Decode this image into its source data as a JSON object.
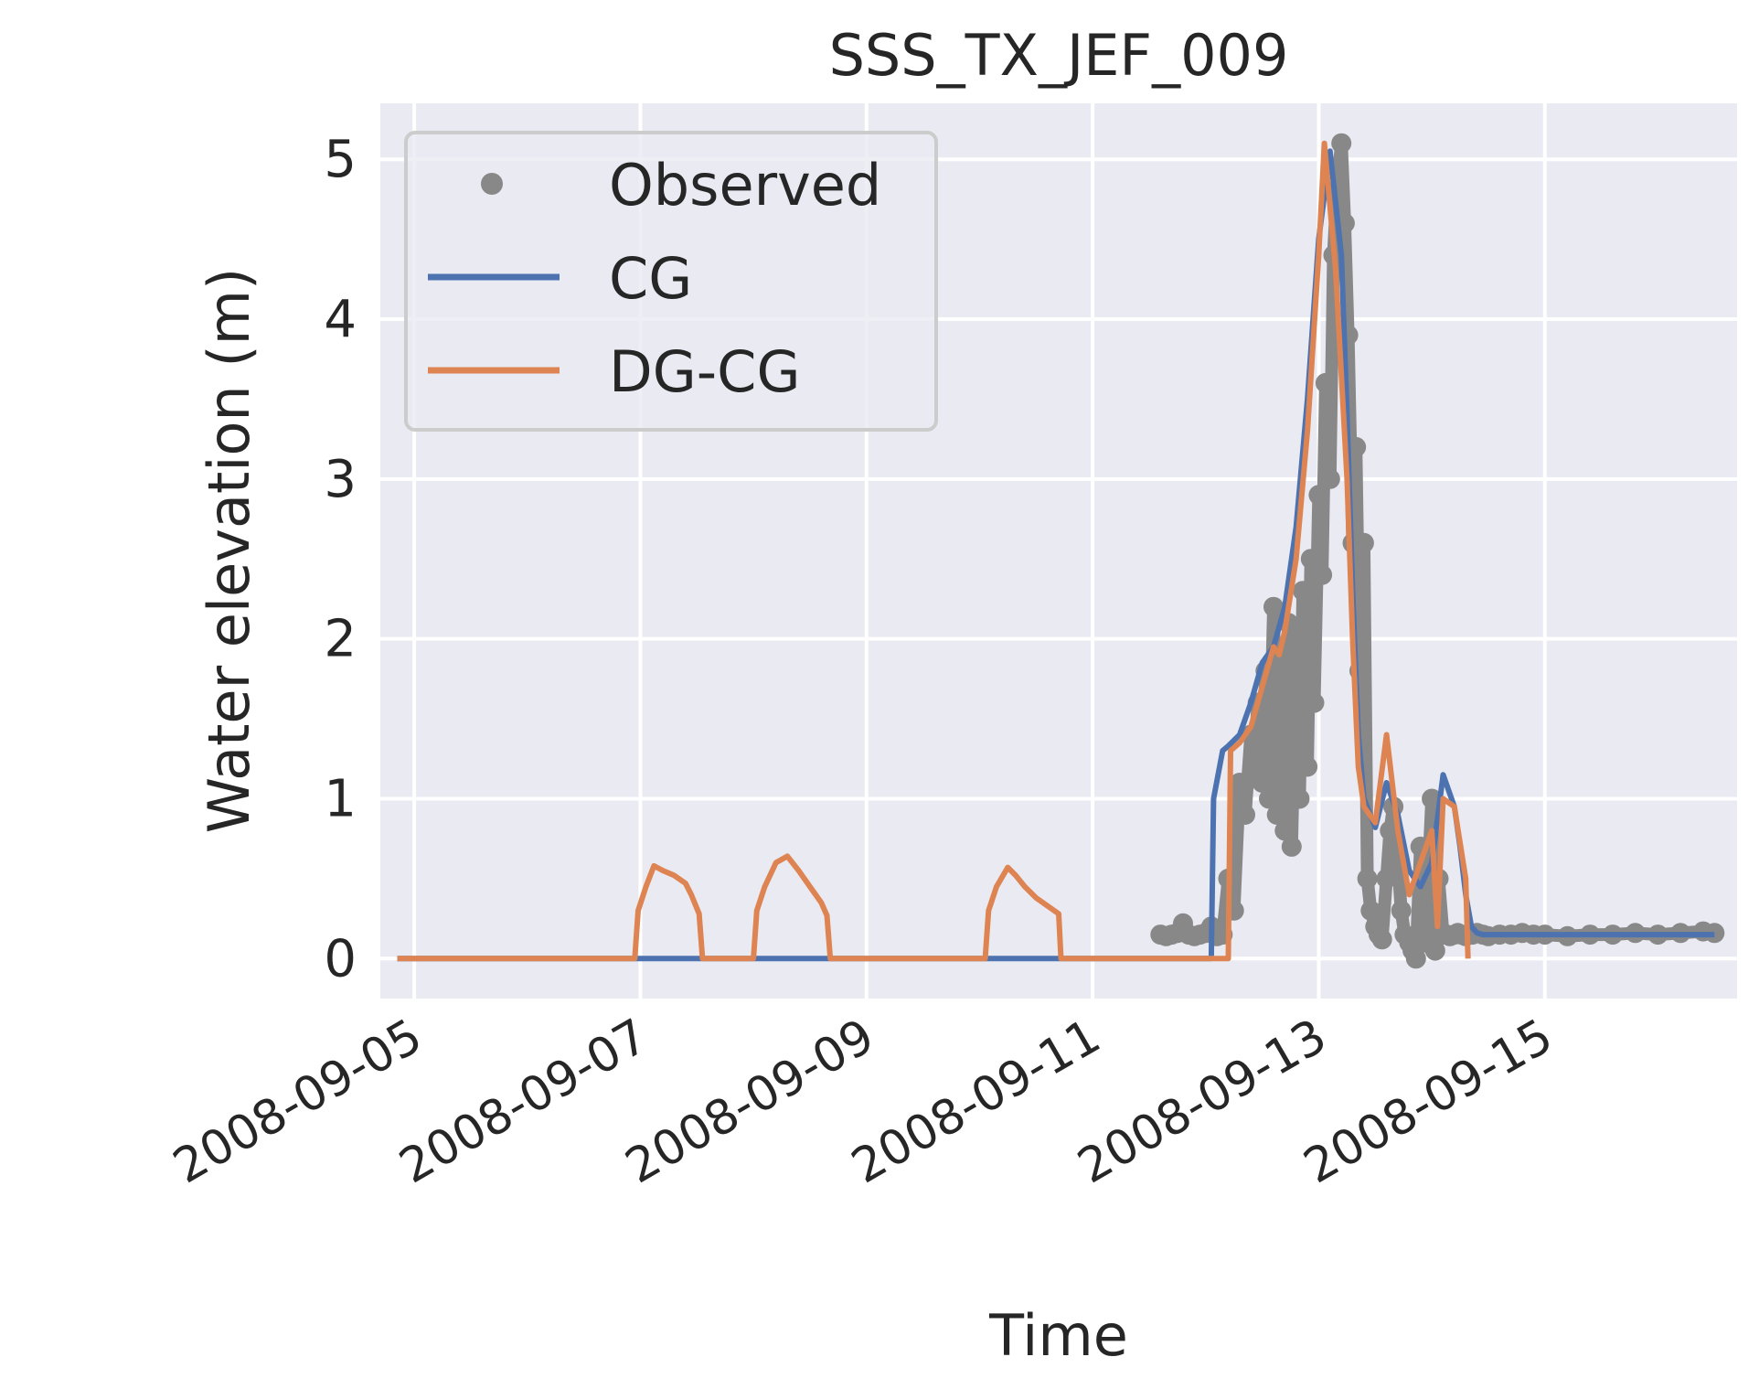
{
  "chart_data": {
    "type": "line",
    "title": "SSS_TX_JEF_009",
    "xlabel": "Time",
    "ylabel": "Water elevation (m)",
    "x_type": "time_days",
    "x_origin": "2008-09-05",
    "xlim_days": [
      -0.3,
      11.7
    ],
    "ylim": [
      -0.25,
      5.35
    ],
    "xticks": [
      {
        "day": 0,
        "label": "2008-09-05"
      },
      {
        "day": 2,
        "label": "2008-09-07"
      },
      {
        "day": 4,
        "label": "2008-09-09"
      },
      {
        "day": 6,
        "label": "2008-09-11"
      },
      {
        "day": 8,
        "label": "2008-09-13"
      },
      {
        "day": 10,
        "label": "2008-09-15"
      }
    ],
    "yticks": [
      0,
      1,
      2,
      3,
      4,
      5
    ],
    "grid": true,
    "legend_position": "top-left",
    "series": [
      {
        "name": "Observed",
        "kind": "points",
        "color": "#888888",
        "x": [
          6.6,
          6.65,
          6.7,
          6.75,
          6.8,
          6.85,
          6.9,
          6.95,
          7.0,
          7.05,
          7.1,
          7.15,
          7.2,
          7.25,
          7.3,
          7.35,
          7.4,
          7.43,
          7.46,
          7.5,
          7.53,
          7.56,
          7.6,
          7.63,
          7.66,
          7.7,
          7.73,
          7.76,
          7.8,
          7.83,
          7.86,
          7.9,
          7.93,
          7.96,
          8.0,
          8.03,
          8.06,
          8.1,
          8.13,
          8.16,
          8.2,
          8.23,
          8.26,
          8.3,
          8.33,
          8.36,
          8.4,
          8.43,
          8.46,
          8.5,
          8.53,
          8.56,
          8.6,
          8.63,
          8.66,
          8.7,
          8.73,
          8.76,
          8.8,
          8.83,
          8.86,
          8.9,
          8.93,
          8.96,
          9.0,
          9.03,
          9.06,
          9.1,
          9.13,
          9.16,
          9.2,
          9.23,
          9.26,
          9.3,
          9.33,
          9.36,
          9.4,
          9.45,
          9.5,
          9.6,
          9.7,
          9.8,
          9.9,
          10.0,
          10.2,
          10.4,
          10.6,
          10.8,
          11.0,
          11.2,
          11.4,
          11.5
        ],
        "values": [
          0.15,
          0.14,
          0.15,
          0.16,
          0.22,
          0.15,
          0.14,
          0.15,
          0.16,
          0.2,
          0.14,
          0.15,
          0.5,
          0.3,
          1.1,
          0.9,
          1.4,
          1.2,
          1.6,
          1.1,
          1.8,
          1.0,
          2.2,
          0.9,
          1.9,
          0.8,
          2.1,
          0.7,
          2.0,
          1.0,
          2.3,
          1.2,
          2.5,
          1.6,
          2.9,
          2.4,
          3.6,
          3.0,
          4.4,
          4.8,
          5.1,
          4.6,
          3.9,
          2.6,
          3.2,
          1.8,
          2.6,
          0.5,
          0.3,
          0.2,
          0.15,
          0.12,
          0.5,
          0.8,
          0.95,
          0.6,
          0.3,
          0.15,
          0.1,
          0.05,
          0.0,
          0.7,
          0.1,
          0.4,
          1.0,
          0.05,
          0.5,
          0.15,
          0.15,
          0.14,
          0.15,
          0.16,
          0.15,
          0.14,
          0.15,
          0.15,
          0.16,
          0.15,
          0.14,
          0.15,
          0.15,
          0.16,
          0.15,
          0.15,
          0.14,
          0.15,
          0.15,
          0.16,
          0.15,
          0.16,
          0.17,
          0.16
        ]
      },
      {
        "name": "CG",
        "kind": "line",
        "color": "#4c72b0",
        "x": [
          -0.15,
          7.05,
          7.07,
          7.15,
          7.2,
          7.3,
          7.4,
          7.5,
          7.6,
          7.7,
          7.8,
          7.9,
          8.0,
          8.1,
          8.2,
          8.25,
          8.3,
          8.35,
          8.4,
          8.5,
          8.6,
          8.7,
          8.8,
          8.9,
          9.0,
          9.1,
          9.2,
          9.25,
          9.3,
          9.35,
          9.4,
          9.45,
          9.5,
          9.55,
          11.5
        ],
        "values": [
          0,
          0,
          1.0,
          1.3,
          1.33,
          1.4,
          1.6,
          1.85,
          1.95,
          2.2,
          2.7,
          3.5,
          4.5,
          5.05,
          4.4,
          3.4,
          2.3,
          1.4,
          1.0,
          0.82,
          1.1,
          0.9,
          0.55,
          0.45,
          0.6,
          1.15,
          0.95,
          0.7,
          0.4,
          0.2,
          0.16,
          0.15,
          0.15,
          0.15,
          0.15
        ]
      },
      {
        "name": "DG-CG",
        "kind": "line",
        "color": "#dd8452",
        "x": [
          -0.15,
          1.95,
          1.98,
          2.05,
          2.12,
          2.2,
          2.3,
          2.4,
          2.45,
          2.52,
          2.55,
          2.58,
          3.0,
          3.03,
          3.1,
          3.2,
          3.3,
          3.4,
          3.5,
          3.6,
          3.65,
          3.68,
          5.05,
          5.08,
          5.15,
          5.25,
          5.32,
          5.4,
          5.5,
          5.6,
          5.7,
          5.72,
          5.75,
          7.2,
          7.22,
          7.3,
          7.4,
          7.5,
          7.6,
          7.65,
          7.7,
          7.8,
          7.9,
          8.0,
          8.05,
          8.15,
          8.25,
          8.3,
          8.35,
          8.4,
          8.5,
          8.6,
          8.7,
          8.8,
          8.9,
          9.0,
          9.05,
          9.1,
          9.2,
          9.3,
          9.32
        ],
        "values": [
          0,
          0,
          0.3,
          0.45,
          0.58,
          0.55,
          0.52,
          0.47,
          0.4,
          0.28,
          0.0,
          0,
          0,
          0.3,
          0.45,
          0.6,
          0.64,
          0.55,
          0.45,
          0.35,
          0.27,
          0.0,
          0,
          0.3,
          0.45,
          0.57,
          0.52,
          0.45,
          0.38,
          0.33,
          0.28,
          0.0,
          0,
          0,
          1.3,
          1.35,
          1.45,
          1.7,
          1.95,
          1.9,
          2.05,
          2.5,
          3.3,
          4.4,
          5.1,
          4.3,
          3.0,
          2.0,
          1.2,
          0.95,
          0.85,
          1.4,
          0.8,
          0.4,
          0.6,
          0.8,
          0.2,
          1.0,
          0.95,
          0.5,
          0.0
        ]
      }
    ]
  },
  "colors": {
    "plot_background": "#eaeaf2",
    "grid": "#ffffff",
    "text": "#262626",
    "observed": "#888888",
    "cg": "#4c72b0",
    "dgcg": "#dd8452"
  }
}
